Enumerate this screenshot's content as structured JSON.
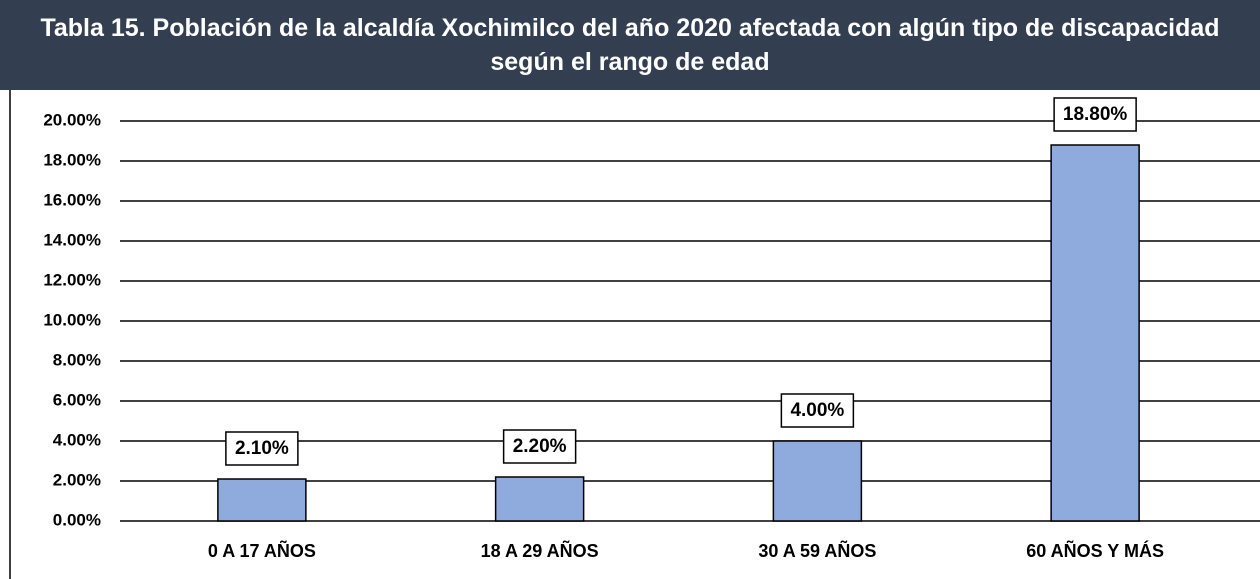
{
  "chart_data": {
    "type": "bar",
    "title": "Tabla 15. Población de la alcaldía Xochimilco del año 2020 afectada con algún tipo de discapacidad según el rango de edad",
    "categories": [
      "0 A 17 AÑOS",
      "18 A 29 AÑOS",
      "30 A 59 AÑOS",
      "60 AÑOS Y MÁS"
    ],
    "values": [
      2.1,
      2.2,
      4.0,
      18.8
    ],
    "value_labels": [
      "2.10%",
      "2.20%",
      "4.00%",
      "18.80%"
    ],
    "color": "#8faadc",
    "ylim": [
      0,
      20
    ],
    "yticks": [
      {
        "value": 0,
        "label": "0.00%"
      },
      {
        "value": 2,
        "label": "2.00%"
      },
      {
        "value": 4,
        "label": "4.00%"
      },
      {
        "value": 6,
        "label": "6.00%"
      },
      {
        "value": 8,
        "label": "8.00%"
      },
      {
        "value": 10,
        "label": "10.00%"
      },
      {
        "value": 12,
        "label": "12.00%"
      },
      {
        "value": 14,
        "label": "14.00%"
      },
      {
        "value": 16,
        "label": "16.00%"
      },
      {
        "value": 18,
        "label": "18.00%"
      },
      {
        "value": 20,
        "label": "20.00%"
      }
    ],
    "grid": true
  }
}
